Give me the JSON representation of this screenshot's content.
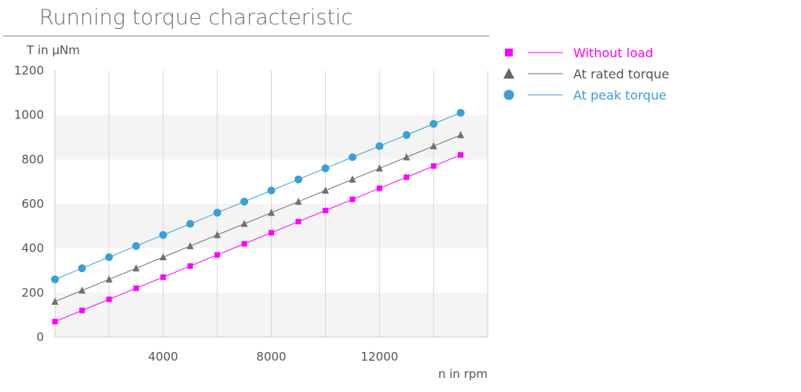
{
  "chart_data": {
    "type": "line",
    "title": "Running torque characteristic",
    "ylabel": "T in µNm",
    "xlabel": "n in rpm",
    "xlim": [
      0,
      16000
    ],
    "ylim": [
      0,
      1200
    ],
    "x_ticks": [
      4000,
      8000,
      12000
    ],
    "x_tick_labels": [
      "4000",
      "8000",
      "12000"
    ],
    "y_ticks": [
      0,
      200,
      400,
      600,
      800,
      1000,
      1200
    ],
    "y_tick_labels": [
      "0",
      "200",
      "400",
      "600",
      "800",
      "1000",
      "1200"
    ],
    "grid": "vertical lines every 2000 rpm, alternating horizontal bands",
    "legend_position": "top-right",
    "x": [
      0,
      1000,
      2000,
      3000,
      4000,
      5000,
      6000,
      7000,
      8000,
      9000,
      10000,
      11000,
      12000,
      13000,
      14000,
      15000
    ],
    "series": [
      {
        "name": "Without load",
        "color": "#ff00ff",
        "marker": "square",
        "values": [
          70,
          120,
          170,
          220,
          270,
          320,
          370,
          420,
          470,
          520,
          570,
          620,
          670,
          720,
          770,
          820
        ]
      },
      {
        "name": "At rated torque",
        "color": "#707070",
        "marker": "triangle",
        "values": [
          160,
          210,
          260,
          310,
          360,
          410,
          460,
          510,
          560,
          610,
          660,
          710,
          760,
          810,
          860,
          910
        ]
      },
      {
        "name": "At peak torque",
        "color": "#3a9fd6",
        "marker": "circle",
        "values": [
          260,
          310,
          360,
          410,
          460,
          510,
          560,
          610,
          660,
          710,
          760,
          810,
          860,
          910,
          960,
          1010
        ]
      }
    ]
  }
}
